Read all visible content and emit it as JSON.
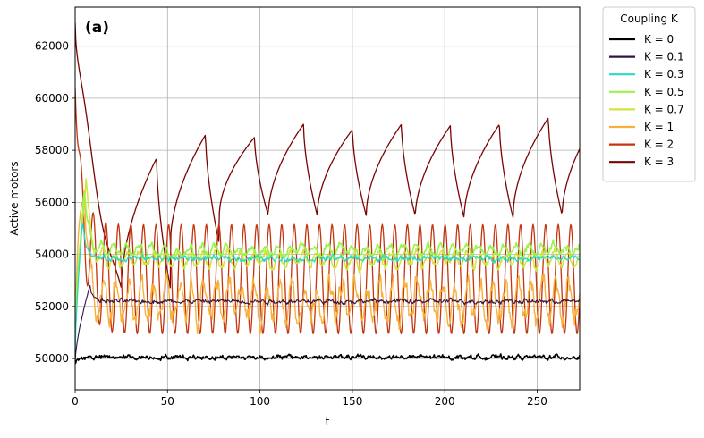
{
  "chart_data": {
    "type": "line",
    "panel_label": "(a)",
    "xlabel": "t",
    "ylabel": "Active motors",
    "xlim": [
      0,
      273
    ],
    "ylim": [
      48800,
      63500
    ],
    "x_ticks": [
      0,
      50,
      100,
      150,
      200,
      250
    ],
    "y_ticks": [
      50000,
      52000,
      54000,
      56000,
      58000,
      60000,
      62000
    ],
    "grid": true,
    "legend": {
      "title": "Coupling K",
      "placement": "outside-right-top"
    },
    "series": [
      {
        "name": "K = 0",
        "color": "#000000",
        "dynamics": {
          "start": 49800,
          "mean": 50050,
          "noise": 120,
          "period": 0,
          "amplitude": 0
        }
      },
      {
        "name": "K = 0.1",
        "color": "#2e1547",
        "dynamics": {
          "start": 49900,
          "peak_t": 8,
          "peak": 52800,
          "mean": 52200,
          "noise": 120,
          "period": 0,
          "amplitude": 0
        }
      },
      {
        "name": "K = 0.3",
        "color": "#2bd8c2",
        "dynamics": {
          "start": 50200,
          "peak_t": 4,
          "peak": 55300,
          "mean": 53850,
          "noise": 150,
          "period": 0,
          "amplitude": 0
        }
      },
      {
        "name": "K = 0.5",
        "color": "#97f54a",
        "dynamics": {
          "start": 50600,
          "peak_t": 5,
          "peak": 56600,
          "mean": 54150,
          "noise": 200,
          "period": 0,
          "amplitude": 0
        }
      },
      {
        "name": "K = 0.7",
        "color": "#d2e43c",
        "dynamics": {
          "start": 50800,
          "peak_t": 6,
          "peak": 57000,
          "mean": 53800,
          "noise": 200,
          "period": 0,
          "amplitude": 0
        }
      },
      {
        "name": "K = 1",
        "color": "#f9b03b",
        "dynamics": {
          "start": 51000,
          "peak_t": 5,
          "peak": 57300,
          "mean": 52200,
          "noise": 550,
          "period": 0,
          "amplitude": 0
        }
      },
      {
        "name": "K = 2",
        "color": "#c4340f",
        "dynamics": {
          "start": 60400,
          "peak_t": 0,
          "peak": 60400,
          "mean": 53050,
          "noise": 0,
          "period": 6.8,
          "amplitude": 2100
        }
      },
      {
        "name": "K = 3",
        "color": "#7a0403",
        "dynamics": {
          "start": 62900,
          "peak_t": 0,
          "peak": 62900,
          "trough": 52700,
          "trough_t": 25,
          "mean": 57000,
          "noise": 0,
          "period": 26.5,
          "amplitude": 1800
        }
      }
    ]
  }
}
